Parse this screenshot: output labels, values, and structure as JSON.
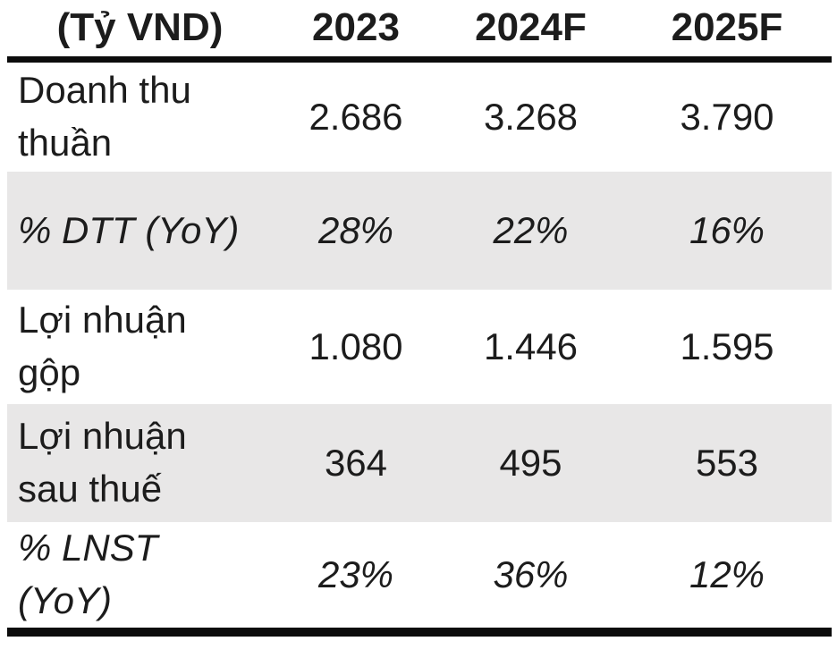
{
  "table": {
    "unit_header": "(Tỷ VND)",
    "columns": [
      "2023",
      "2024F",
      "2025F"
    ],
    "rows": [
      {
        "label": "Doanh thu thuần",
        "values": [
          "2.686",
          "3.268",
          "3.790"
        ],
        "shaded": false,
        "italic": false
      },
      {
        "label": "% DTT (YoY)",
        "values": [
          "28%",
          "22%",
          "16%"
        ],
        "shaded": true,
        "italic": true
      },
      {
        "label": "Lợi nhuận gộp",
        "values": [
          "1.080",
          "1.446",
          "1.595"
        ],
        "shaded": false,
        "italic": false
      },
      {
        "label": "Lợi nhuận sau thuế",
        "values": [
          "364",
          "495",
          "553"
        ],
        "shaded": true,
        "italic": false
      },
      {
        "label": "% LNST (YoY)",
        "values": [
          "23%",
          "36%",
          "12%"
        ],
        "shaded": false,
        "italic": true
      }
    ],
    "colors": {
      "shaded_row_bg": "#e8e7e7",
      "text": "#1c1c1c",
      "rule": "#0c0c0c",
      "background": "#ffffff"
    }
  },
  "chart_data": {
    "type": "table",
    "title": "(Tỷ VND)",
    "categories": [
      "2023",
      "2024F",
      "2025F"
    ],
    "series": [
      {
        "name": "Doanh thu thuần",
        "values": [
          2686,
          3268,
          3790
        ]
      },
      {
        "name": "% DTT (YoY)",
        "values": [
          "28%",
          "22%",
          "16%"
        ]
      },
      {
        "name": "Lợi nhuận gộp",
        "values": [
          1080,
          1446,
          1595
        ]
      },
      {
        "name": "Lợi nhuận sau thuế",
        "values": [
          364,
          495,
          553
        ]
      },
      {
        "name": "% LNST (YoY)",
        "values": [
          "23%",
          "36%",
          "12%"
        ]
      }
    ]
  }
}
